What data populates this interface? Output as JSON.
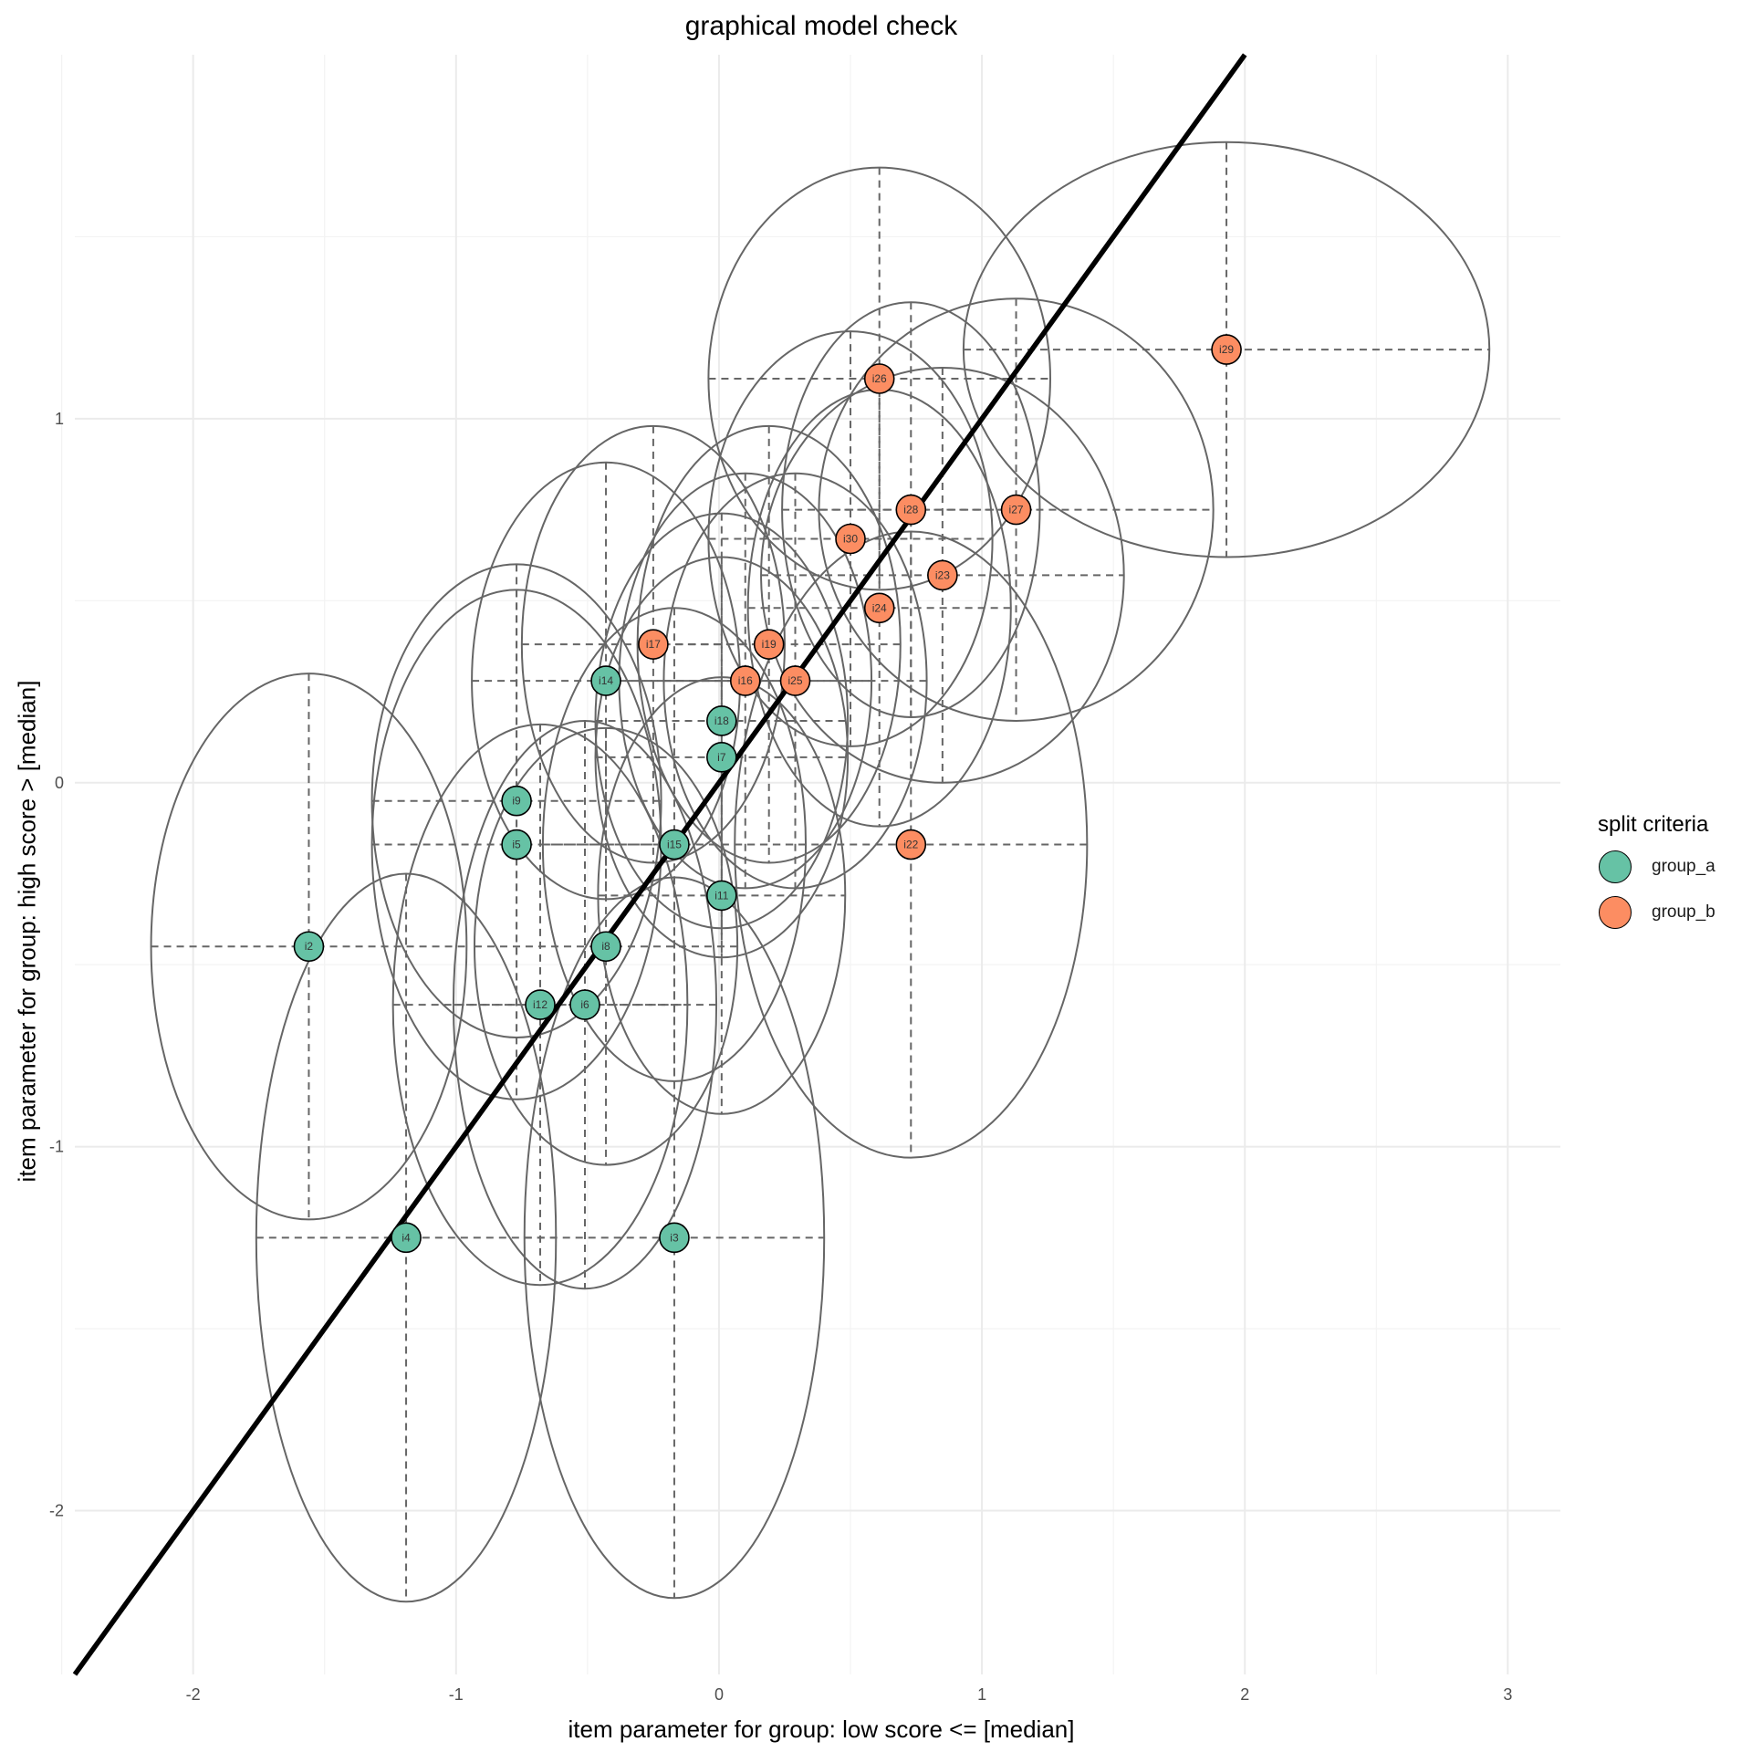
{
  "chart_data": {
    "type": "scatter",
    "title": "graphical model check",
    "xlabel": "item parameter for group: low score <= [median]",
    "ylabel": "item parameter for group: high score > [median]",
    "xlim": [
      -2.45,
      3.2
    ],
    "ylim": [
      -2.45,
      2.0
    ],
    "xticks": [
      -2,
      -1,
      0,
      1,
      2,
      3
    ],
    "xtick_labels": [
      "-2",
      "-1",
      "0",
      "1",
      "2",
      "3"
    ],
    "yticks": [
      -2,
      -1,
      0,
      1
    ],
    "ytick_labels": [
      "-2",
      "-1",
      "0",
      "1"
    ],
    "grid": true,
    "identity_line": true,
    "legend": {
      "title": "split criteria",
      "position": "right",
      "entries": [
        {
          "name": "group_a",
          "color": "#66C2A5"
        },
        {
          "name": "group_b",
          "color": "#FC8D62"
        }
      ]
    },
    "colors": {
      "group_a": "#66C2A5",
      "group_b": "#FC8D62",
      "ellipse": "#666666",
      "line": "#000000",
      "grid": "#ebebeb"
    },
    "points": [
      {
        "label": "i2",
        "group": "group_a",
        "x": -1.56,
        "y": -0.45,
        "ex": 0.6,
        "ey": 0.75
      },
      {
        "label": "i4",
        "group": "group_a",
        "x": -1.19,
        "y": -1.25,
        "ex": 0.57,
        "ey": 1.0
      },
      {
        "label": "i5",
        "group": "group_a",
        "x": -0.77,
        "y": -0.17,
        "ex": 0.55,
        "ey": 0.7
      },
      {
        "label": "i9",
        "group": "group_a",
        "x": -0.77,
        "y": -0.05,
        "ex": 0.55,
        "ey": 0.65
      },
      {
        "label": "i14",
        "group": "group_a",
        "x": -0.43,
        "y": 0.28,
        "ex": 0.51,
        "ey": 0.6
      },
      {
        "label": "i8",
        "group": "group_a",
        "x": -0.43,
        "y": -0.45,
        "ex": 0.5,
        "ey": 0.6
      },
      {
        "label": "i12",
        "group": "group_a",
        "x": -0.68,
        "y": -0.61,
        "ex": 0.56,
        "ey": 0.77
      },
      {
        "label": "i6",
        "group": "group_a",
        "x": -0.51,
        "y": -0.61,
        "ex": 0.5,
        "ey": 0.78
      },
      {
        "label": "i15",
        "group": "group_a",
        "x": -0.17,
        "y": -0.17,
        "ex": 0.5,
        "ey": 0.65
      },
      {
        "label": "i3",
        "group": "group_a",
        "x": -0.17,
        "y": -1.25,
        "ex": 0.57,
        "ey": 0.99
      },
      {
        "label": "i18",
        "group": "group_a",
        "x": 0.01,
        "y": 0.17,
        "ex": 0.48,
        "ey": 0.57
      },
      {
        "label": "i7",
        "group": "group_a",
        "x": 0.01,
        "y": 0.07,
        "ex": 0.48,
        "ey": 0.55
      },
      {
        "label": "i11",
        "group": "group_a",
        "x": 0.01,
        "y": -0.31,
        "ex": 0.47,
        "ey": 0.6
      },
      {
        "label": "i17",
        "group": "group_b",
        "x": -0.25,
        "y": 0.38,
        "ex": 0.5,
        "ey": 0.6
      },
      {
        "label": "i16",
        "group": "group_b",
        "x": 0.1,
        "y": 0.28,
        "ex": 0.48,
        "ey": 0.57
      },
      {
        "label": "i19",
        "group": "group_b",
        "x": 0.19,
        "y": 0.38,
        "ex": 0.5,
        "ey": 0.6
      },
      {
        "label": "i25",
        "group": "group_b",
        "x": 0.29,
        "y": 0.28,
        "ex": 0.5,
        "ey": 0.57
      },
      {
        "label": "i24",
        "group": "group_b",
        "x": 0.61,
        "y": 0.48,
        "ex": 0.5,
        "ey": 0.6
      },
      {
        "label": "i22",
        "group": "group_b",
        "x": 0.73,
        "y": -0.17,
        "ex": 0.67,
        "ey": 0.86
      },
      {
        "label": "i30",
        "group": "group_b",
        "x": 0.5,
        "y": 0.67,
        "ex": 0.54,
        "ey": 0.57
      },
      {
        "label": "i28",
        "group": "group_b",
        "x": 0.73,
        "y": 0.75,
        "ex": 0.49,
        "ey": 0.57
      },
      {
        "label": "i23",
        "group": "group_b",
        "x": 0.85,
        "y": 0.57,
        "ex": 0.69,
        "ey": 0.57
      },
      {
        "label": "i26",
        "group": "group_b",
        "x": 0.61,
        "y": 1.11,
        "ex": 0.65,
        "ey": 0.58
      },
      {
        "label": "i27",
        "group": "group_b",
        "x": 1.13,
        "y": 0.75,
        "ex": 0.75,
        "ey": 0.58
      },
      {
        "label": "i29",
        "group": "group_b",
        "x": 1.93,
        "y": 1.19,
        "ex": 1.0,
        "ey": 0.57
      }
    ]
  }
}
